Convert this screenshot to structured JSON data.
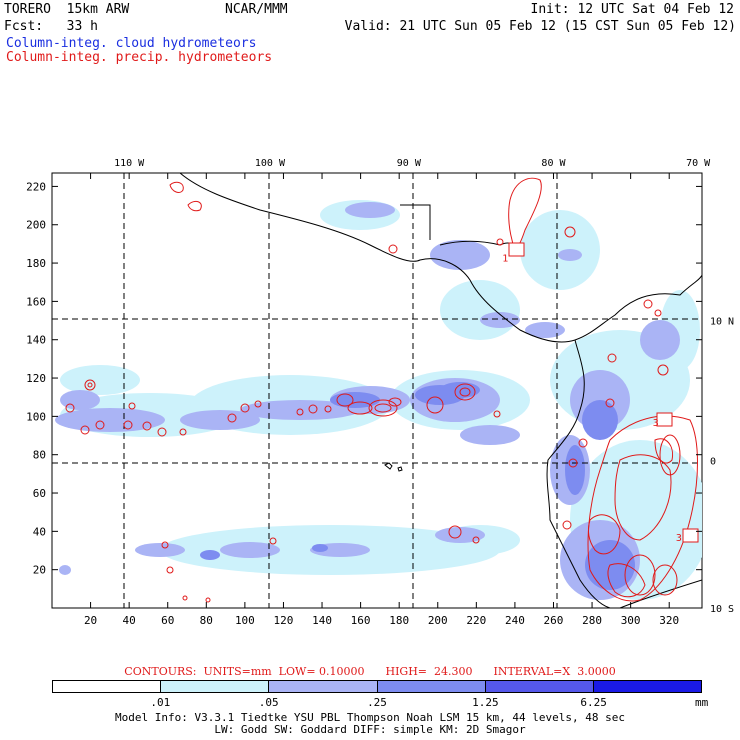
{
  "header": {
    "model_name": "TORERO  15km ARW",
    "institution": "NCAR/MMM",
    "init": "Init: 12 UTC Sat 04 Feb 12",
    "fcst": "Fcst:   33 h",
    "valid": "Valid: 21 UTC Sun 05 Feb 12 (15 CST Sun 05 Feb 12)",
    "field_cloud": "Column-integ. cloud hydrometeors",
    "field_precip": "Column-integ. precip. hydrometeors"
  },
  "axes": {
    "lon_labels": [
      {
        "label": "110 W",
        "x": 40
      },
      {
        "label": "100 W",
        "x": 113
      },
      {
        "label": "90 W",
        "x": 185
      },
      {
        "label": "80 W",
        "x": 260
      },
      {
        "label": "70 W",
        "x": 335
      }
    ],
    "lat_labels": [
      {
        "label": "10 N",
        "y": 150
      },
      {
        "label": "0",
        "y": 77
      },
      {
        "label": "10 S",
        "y": 0
      }
    ],
    "x_ticks": [
      20,
      40,
      60,
      80,
      100,
      120,
      140,
      160,
      180,
      200,
      220,
      240,
      260,
      280,
      300,
      320
    ],
    "y_ticks": [
      20,
      40,
      60,
      80,
      100,
      120,
      140,
      160,
      180,
      200,
      220
    ],
    "x_range": [
      0,
      337
    ],
    "y_range": [
      0,
      227
    ]
  },
  "contours_info": "CONTOURS:  UNITS=mm  LOW= 0.10000      HIGH=  24.300      INTERVAL=X  3.0000",
  "contour_labels": [
    {
      "label": "1",
      "x": 235,
      "y": 183
    },
    {
      "label": "3",
      "x": 313,
      "y": 97
    },
    {
      "label": "3",
      "x": 325,
      "y": 37
    }
  ],
  "legend": {
    "colors": [
      "#ffffff",
      "#cdf2fb",
      "#aab4f5",
      "#7d8cf0",
      "#5558ea",
      "#1a1ae6"
    ],
    "tick_labels": [
      ".01",
      ".05",
      ".25",
      "1.25",
      "6.25"
    ],
    "unit": "mm"
  },
  "model_info_line1": "Model Info: V3.3.1   Tiedtke YSU PBL  Thompson    Noah LSM  15 km,   44 levels,   48 sec",
  "model_info_line2": "LW: Godd SW: Goddard DIFF: simple KM: 2D Smagor"
}
